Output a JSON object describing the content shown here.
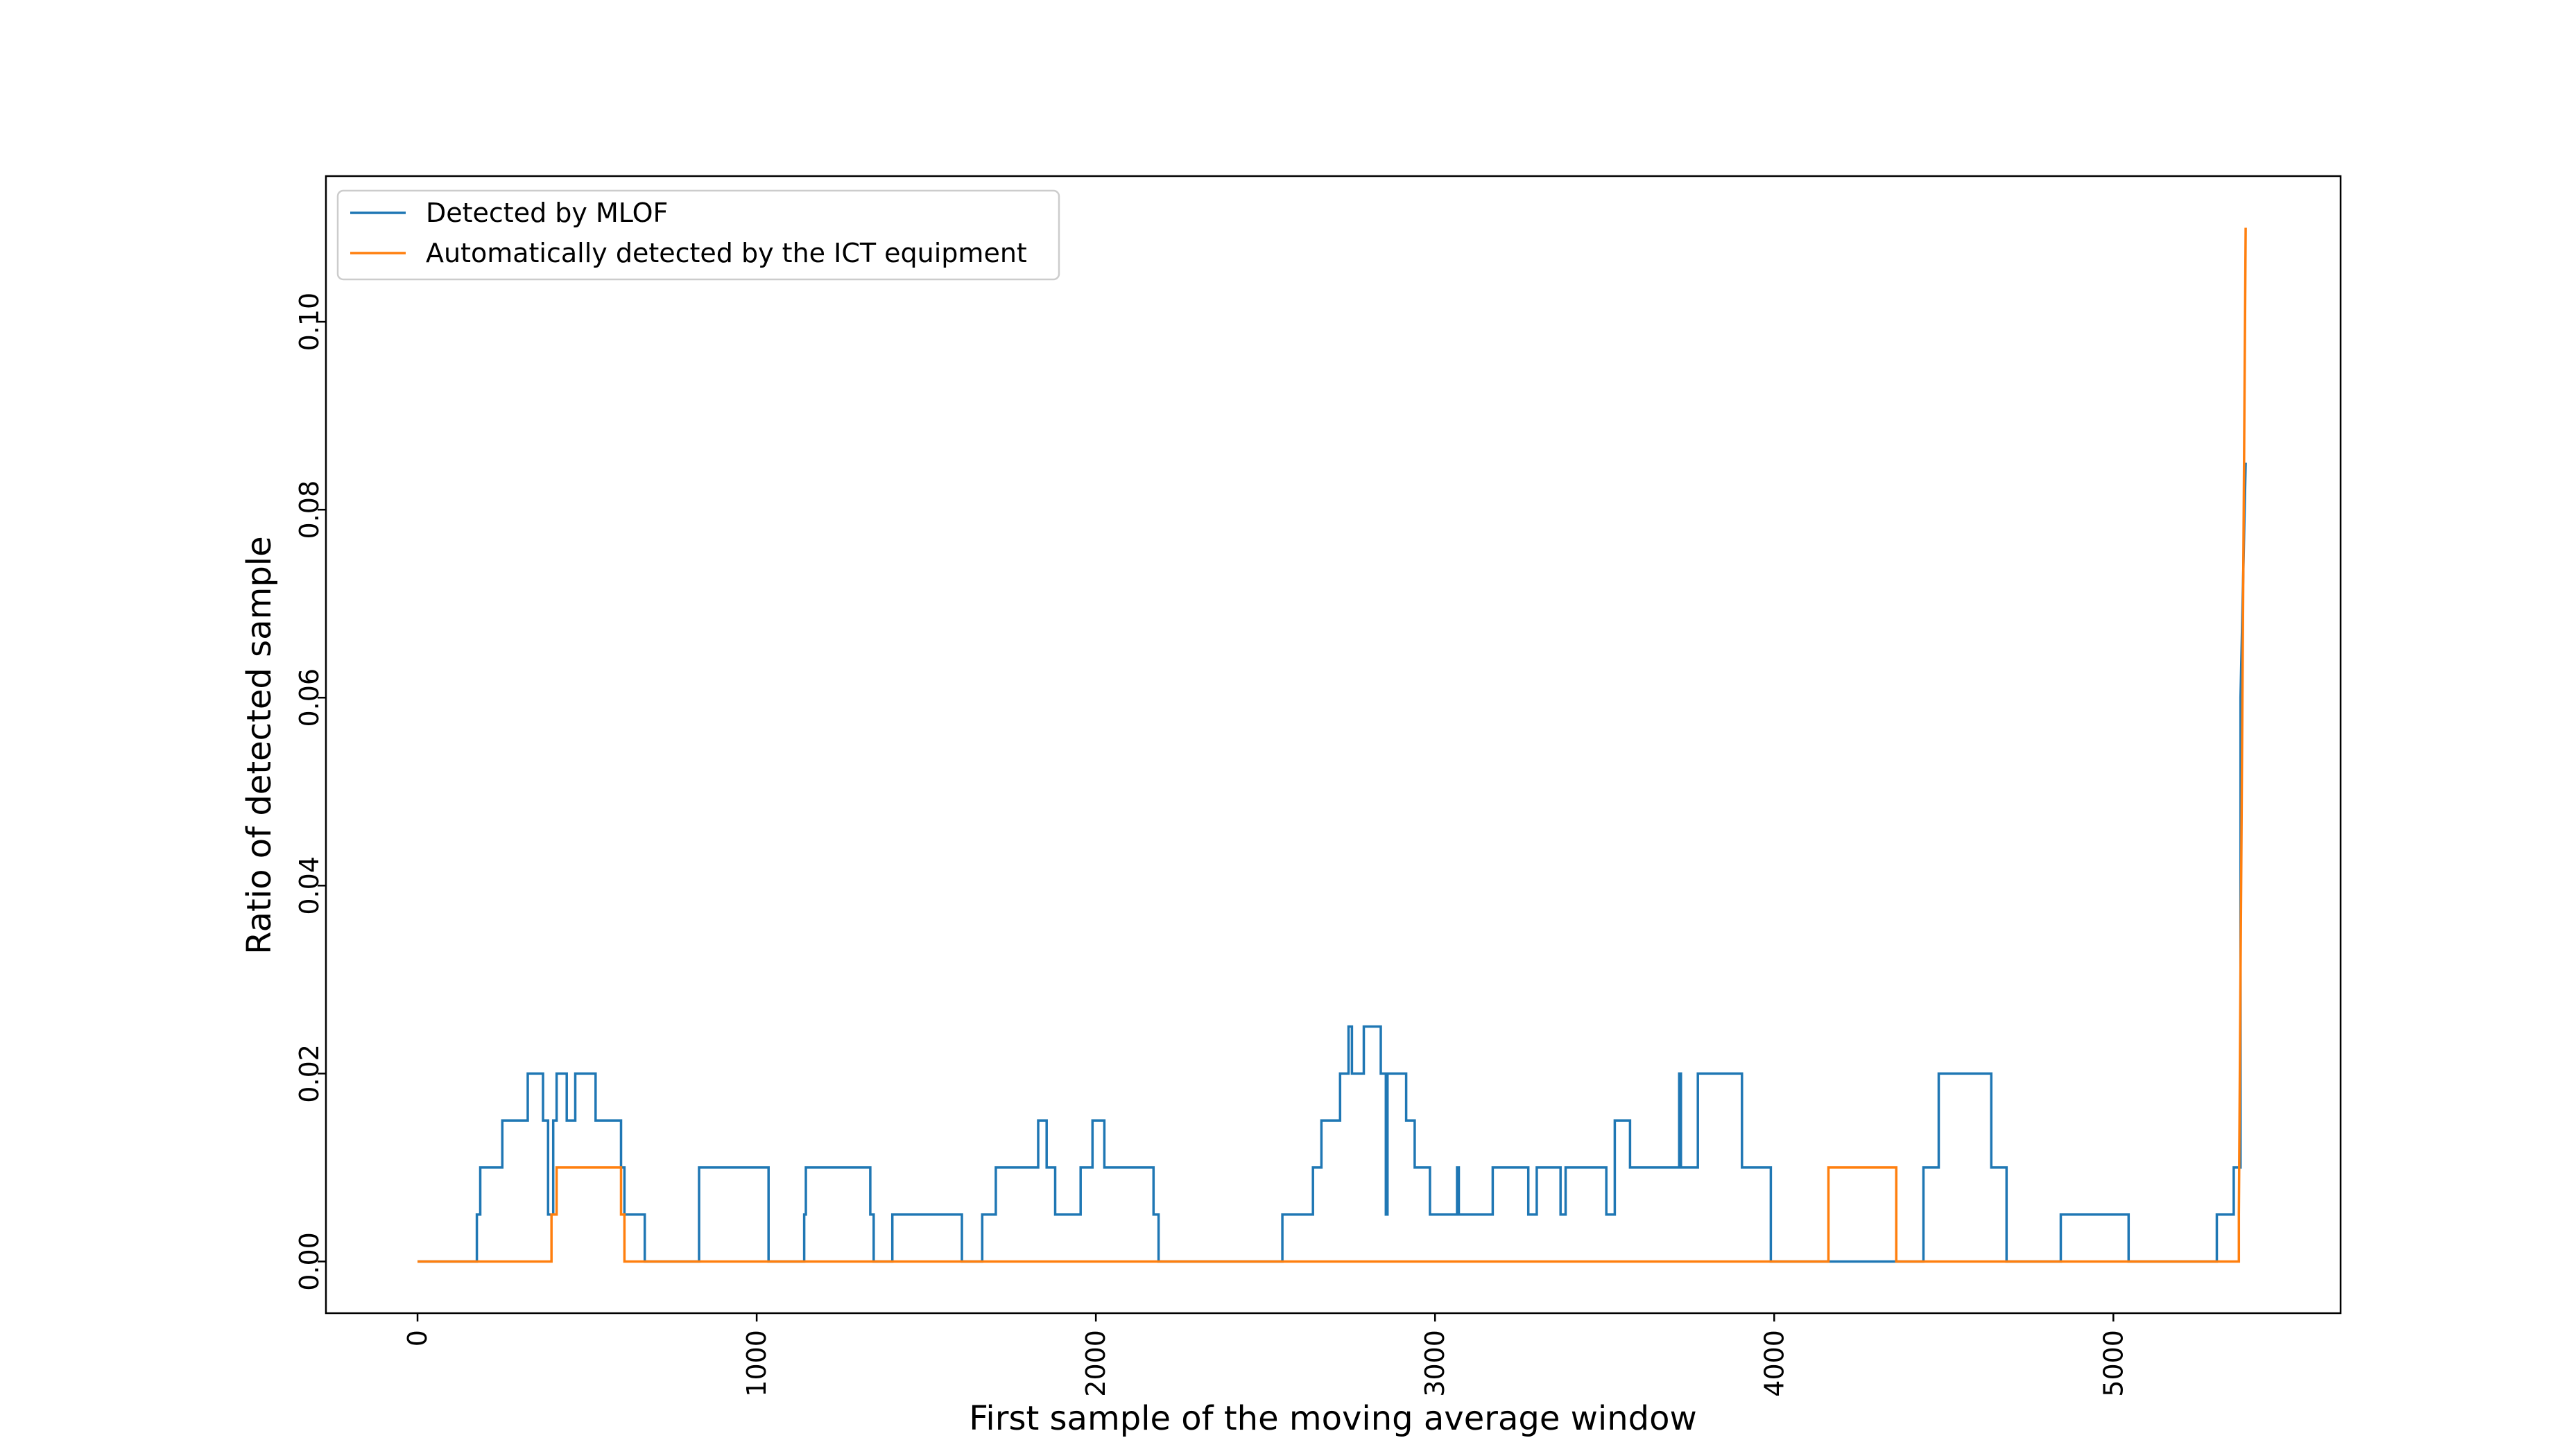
{
  "chart_data": {
    "type": "line",
    "xlabel": "First sample of the moving average window",
    "ylabel": "Ratio of detected sample",
    "xlim": [
      -270,
      5670
    ],
    "ylim": [
      -0.0055,
      0.1155
    ],
    "xticks": [
      0,
      1000,
      2000,
      3000,
      4000,
      5000
    ],
    "xtick_labels": [
      "0",
      "1000",
      "2000",
      "3000",
      "4000",
      "5000"
    ],
    "yticks": [
      0.0,
      0.02,
      0.04,
      0.06,
      0.08,
      0.1
    ],
    "ytick_labels": [
      "0.00",
      "0.02",
      "0.04",
      "0.06",
      "0.08",
      "0.10"
    ],
    "grid": false,
    "legend_position": "top-left",
    "series": [
      {
        "name": "Detected by MLOF",
        "color": "#1f77b4",
        "points": [
          [
            0,
            0
          ],
          [
            175,
            0
          ],
          [
            175,
            0.005
          ],
          [
            185,
            0.005
          ],
          [
            185,
            0.01
          ],
          [
            250,
            0.01
          ],
          [
            250,
            0.015
          ],
          [
            325,
            0.015
          ],
          [
            325,
            0.02
          ],
          [
            370,
            0.02
          ],
          [
            370,
            0.015
          ],
          [
            385,
            0.015
          ],
          [
            385,
            0.005
          ],
          [
            400,
            0.005
          ],
          [
            400,
            0.015
          ],
          [
            410,
            0.015
          ],
          [
            410,
            0.02
          ],
          [
            440,
            0.02
          ],
          [
            440,
            0.015
          ],
          [
            465,
            0.015
          ],
          [
            465,
            0.02
          ],
          [
            525,
            0.02
          ],
          [
            525,
            0.015
          ],
          [
            600,
            0.015
          ],
          [
            600,
            0.01
          ],
          [
            610,
            0.01
          ],
          [
            610,
            0.005
          ],
          [
            670,
            0.005
          ],
          [
            670,
            0
          ],
          [
            830,
            0
          ],
          [
            830,
            0.01
          ],
          [
            1035,
            0.01
          ],
          [
            1035,
            0
          ],
          [
            1140,
            0
          ],
          [
            1140,
            0.005
          ],
          [
            1145,
            0.005
          ],
          [
            1145,
            0.01
          ],
          [
            1335,
            0.01
          ],
          [
            1335,
            0.005
          ],
          [
            1345,
            0.005
          ],
          [
            1345,
            0
          ],
          [
            1400,
            0
          ],
          [
            1400,
            0.005
          ],
          [
            1605,
            0.005
          ],
          [
            1605,
            0
          ],
          [
            1665,
            0
          ],
          [
            1665,
            0.005
          ],
          [
            1705,
            0.005
          ],
          [
            1705,
            0.01
          ],
          [
            1830,
            0.01
          ],
          [
            1830,
            0.015
          ],
          [
            1855,
            0.015
          ],
          [
            1855,
            0.01
          ],
          [
            1880,
            0.01
          ],
          [
            1880,
            0.005
          ],
          [
            1955,
            0.005
          ],
          [
            1955,
            0.01
          ],
          [
            1990,
            0.01
          ],
          [
            1990,
            0.015
          ],
          [
            2025,
            0.015
          ],
          [
            2025,
            0.01
          ],
          [
            2170,
            0.01
          ],
          [
            2170,
            0.005
          ],
          [
            2185,
            0.005
          ],
          [
            2185,
            0
          ],
          [
            2550,
            0
          ],
          [
            2550,
            0.005
          ],
          [
            2640,
            0.005
          ],
          [
            2640,
            0.01
          ],
          [
            2665,
            0.01
          ],
          [
            2665,
            0.015
          ],
          [
            2720,
            0.015
          ],
          [
            2720,
            0.02
          ],
          [
            2745,
            0.02
          ],
          [
            2745,
            0.025
          ],
          [
            2755,
            0.025
          ],
          [
            2755,
            0.02
          ],
          [
            2790,
            0.02
          ],
          [
            2790,
            0.025
          ],
          [
            2840,
            0.025
          ],
          [
            2840,
            0.02
          ],
          [
            2855,
            0.02
          ],
          [
            2855,
            0.005
          ],
          [
            2860,
            0.005
          ],
          [
            2860,
            0.02
          ],
          [
            2915,
            0.02
          ],
          [
            2915,
            0.015
          ],
          [
            2940,
            0.015
          ],
          [
            2940,
            0.01
          ],
          [
            2985,
            0.01
          ],
          [
            2985,
            0.005
          ],
          [
            3065,
            0.005
          ],
          [
            3065,
            0.01
          ],
          [
            3070,
            0.01
          ],
          [
            3070,
            0.005
          ],
          [
            3170,
            0.005
          ],
          [
            3170,
            0.01
          ],
          [
            3275,
            0.01
          ],
          [
            3275,
            0.005
          ],
          [
            3300,
            0.005
          ],
          [
            3300,
            0.01
          ],
          [
            3370,
            0.01
          ],
          [
            3370,
            0.005
          ],
          [
            3385,
            0.005
          ],
          [
            3385,
            0.01
          ],
          [
            3505,
            0.01
          ],
          [
            3505,
            0.005
          ],
          [
            3530,
            0.005
          ],
          [
            3530,
            0.015
          ],
          [
            3575,
            0.015
          ],
          [
            3575,
            0.01
          ],
          [
            3720,
            0.01
          ],
          [
            3720,
            0.02
          ],
          [
            3725,
            0.02
          ],
          [
            3725,
            0.01
          ],
          [
            3775,
            0.01
          ],
          [
            3775,
            0.02
          ],
          [
            3905,
            0.02
          ],
          [
            3905,
            0.01
          ],
          [
            3990,
            0.01
          ],
          [
            3990,
            0
          ],
          [
            4440,
            0
          ],
          [
            4440,
            0.01
          ],
          [
            4485,
            0.01
          ],
          [
            4485,
            0.02
          ],
          [
            4640,
            0.02
          ],
          [
            4640,
            0.01
          ],
          [
            4685,
            0.01
          ],
          [
            4685,
            0
          ],
          [
            4845,
            0
          ],
          [
            4845,
            0.005
          ],
          [
            5045,
            0.005
          ],
          [
            5045,
            0
          ],
          [
            5305,
            0
          ],
          [
            5305,
            0.005
          ],
          [
            5355,
            0.005
          ],
          [
            5355,
            0.01
          ],
          [
            5375,
            0.01
          ],
          [
            5375,
            0.06
          ],
          [
            5390,
            0.085
          ]
        ]
      },
      {
        "name": "Automatically detected by the ICT equipment",
        "color": "#ff7f0e",
        "points": [
          [
            0,
            0
          ],
          [
            395,
            0
          ],
          [
            395,
            0.005
          ],
          [
            410,
            0.005
          ],
          [
            410,
            0.01
          ],
          [
            600,
            0.01
          ],
          [
            600,
            0.005
          ],
          [
            610,
            0.005
          ],
          [
            610,
            0
          ],
          [
            4160,
            0
          ],
          [
            4160,
            0.01
          ],
          [
            4360,
            0.01
          ],
          [
            4360,
            0
          ],
          [
            5370,
            0
          ],
          [
            5370,
            0.005
          ],
          [
            5390,
            0.11
          ]
        ]
      }
    ]
  }
}
